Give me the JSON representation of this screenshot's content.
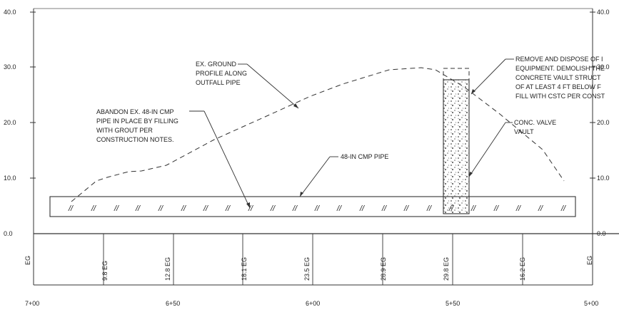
{
  "y_axis": {
    "left_ticks": [
      "40.0",
      "30.0",
      "20.0",
      "10.0",
      "0.0"
    ],
    "right_ticks": [
      "40.0",
      "30.0",
      "20.0",
      "10.0",
      "0.0"
    ],
    "min": 0,
    "max": 40
  },
  "stations": [
    "7+00",
    "6+50",
    "6+00",
    "5+50",
    "5+00"
  ],
  "eg_table": {
    "end_label": "EG",
    "entries": [
      "9.8 EG",
      "12.8 EG",
      "18.1 EG",
      "23.5 EG",
      "28.9 EG",
      "29.8 EG",
      "16.2 EG"
    ]
  },
  "pipe_marker": "//",
  "callouts": {
    "ground": [
      "EX. GROUND",
      "PROFILE ALONG",
      "OUTFALL PIPE"
    ],
    "abandon": [
      "ABANDON EX. 48-IN CMP",
      "PIPE IN PLACE BY FILLING",
      "WITH GROUT PER",
      "CONSTRUCTION NOTES."
    ],
    "pipe": [
      "48-IN CMP PIPE"
    ],
    "vault": [
      "CONC. VALVE",
      "VAULT"
    ],
    "remove": [
      "REMOVE AND DISPOSE OF I",
      "EQUIPMENT. DEMOLISH THE",
      "CONCRETE VAULT STRUCT",
      "OF AT LEAST 4 FT BELOW F",
      "FILL WITH CSTC PER CONST"
    ]
  }
}
